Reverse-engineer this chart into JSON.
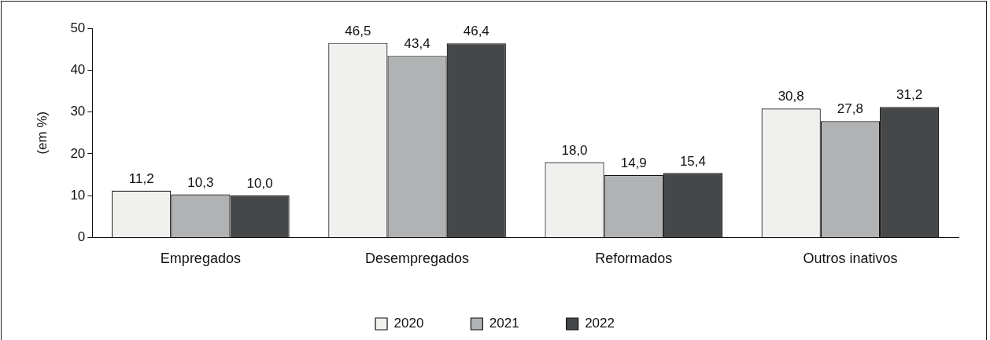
{
  "chart_data": {
    "type": "bar",
    "ylabel": "(em %)",
    "categories": [
      "Empregados",
      "Desempregados",
      "Reformados",
      "Outros inativos"
    ],
    "series": [
      {
        "name": "2020",
        "color": "#f0f1ee",
        "values": [
          11.2,
          46.5,
          18.0,
          30.8
        ],
        "value_labels": [
          "11,2",
          "46,5",
          "18,0",
          "30,8"
        ]
      },
      {
        "name": "2021",
        "color": "#b1b2b4",
        "values": [
          10.3,
          43.4,
          14.9,
          27.8
        ],
        "value_labels": [
          "10,3",
          "43,4",
          "14,9",
          "27,8"
        ]
      },
      {
        "name": "2022",
        "color": "#464749",
        "values": [
          10.0,
          46.4,
          15.4,
          31.2
        ],
        "value_labels": [
          "10,0",
          "46,4",
          "15,4",
          "31,2"
        ]
      }
    ],
    "ylim": [
      0,
      50
    ],
    "yticks": [
      0,
      10,
      20,
      30,
      40,
      50
    ],
    "grid": false,
    "legend": "bottom"
  }
}
